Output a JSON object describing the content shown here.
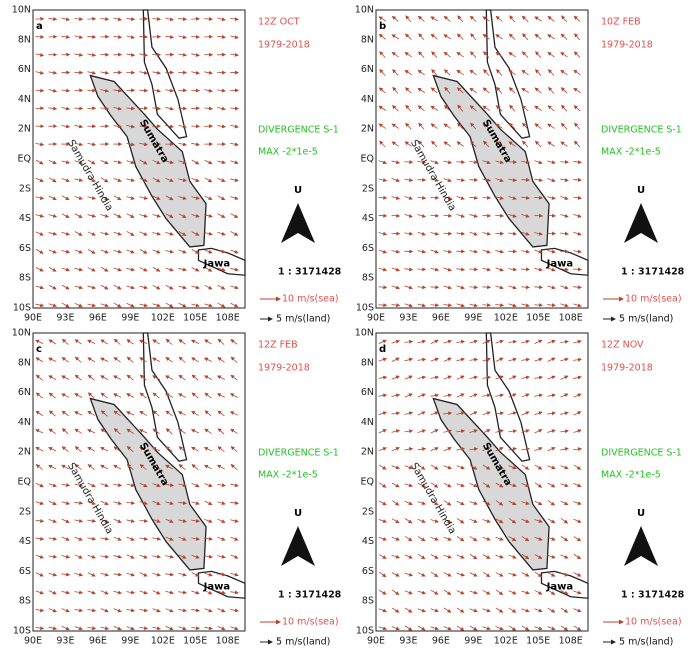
{
  "figure": {
    "yticks": [
      "10N",
      "8N",
      "6N",
      "4N",
      "2N",
      "EQ",
      "2S",
      "4S",
      "6S",
      "8S",
      "10S"
    ],
    "xticks": [
      "90E",
      "93E",
      "96E",
      "99E",
      "102E",
      "105E",
      "108E"
    ],
    "ocean_label": "Samudra Hindia",
    "island_label": "Sumatra",
    "java_label": "Jawa",
    "divergence": "DIVERGENCE S-1",
    "max": "MAX -2*1e-5",
    "north": "U",
    "scale": "1 : 3171428",
    "sea_legend": "10 m/s(sea)",
    "land_legend": "5 m/s(land)",
    "panels": [
      {
        "label": "a",
        "time": "12Z OCT",
        "period": "1979-2018"
      },
      {
        "label": "b",
        "time": "10Z FEB",
        "period": "1979-2018"
      },
      {
        "label": "c",
        "time": "12Z FEB",
        "period": "1979-2018"
      },
      {
        "label": "d",
        "time": "12Z NOV",
        "period": "1979-2018"
      }
    ]
  }
}
